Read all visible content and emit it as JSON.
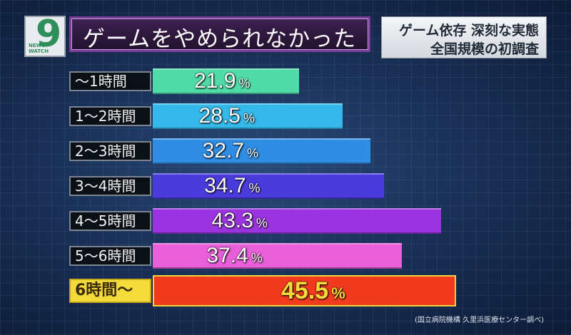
{
  "logo": {
    "main": "9",
    "small": "NEWS WATCH"
  },
  "title": "ゲームをやめられなかった",
  "subtitle": {
    "line1": "ゲーム依存 深刻な実態",
    "line2": "全国規模の初調査"
  },
  "source": "(国立病院機構 久里浜医療センター調べ)",
  "unit_symbol": "%",
  "colors": [
    "#4fdca8",
    "#34b9ea",
    "#2f8de4",
    "#4a3bdc",
    "#9b34e0",
    "#e95ed9",
    "#f23a1e"
  ],
  "chart_data": {
    "type": "bar",
    "orientation": "horizontal",
    "title": "ゲームをやめられなかった",
    "categories": [
      "〜1時間",
      "1〜2時間",
      "2〜3時間",
      "3〜4時間",
      "4〜5時間",
      "5〜6時間",
      "6時間〜"
    ],
    "values": [
      21.9,
      28.5,
      32.7,
      34.7,
      43.3,
      37.4,
      45.5
    ],
    "value_labels": [
      "21.9",
      "28.5",
      "32.7",
      "34.7",
      "43.3",
      "37.4",
      "45.5"
    ],
    "unit": "%",
    "xlim": [
      0,
      50
    ],
    "highlight_category": "6時間〜",
    "grid": false
  }
}
